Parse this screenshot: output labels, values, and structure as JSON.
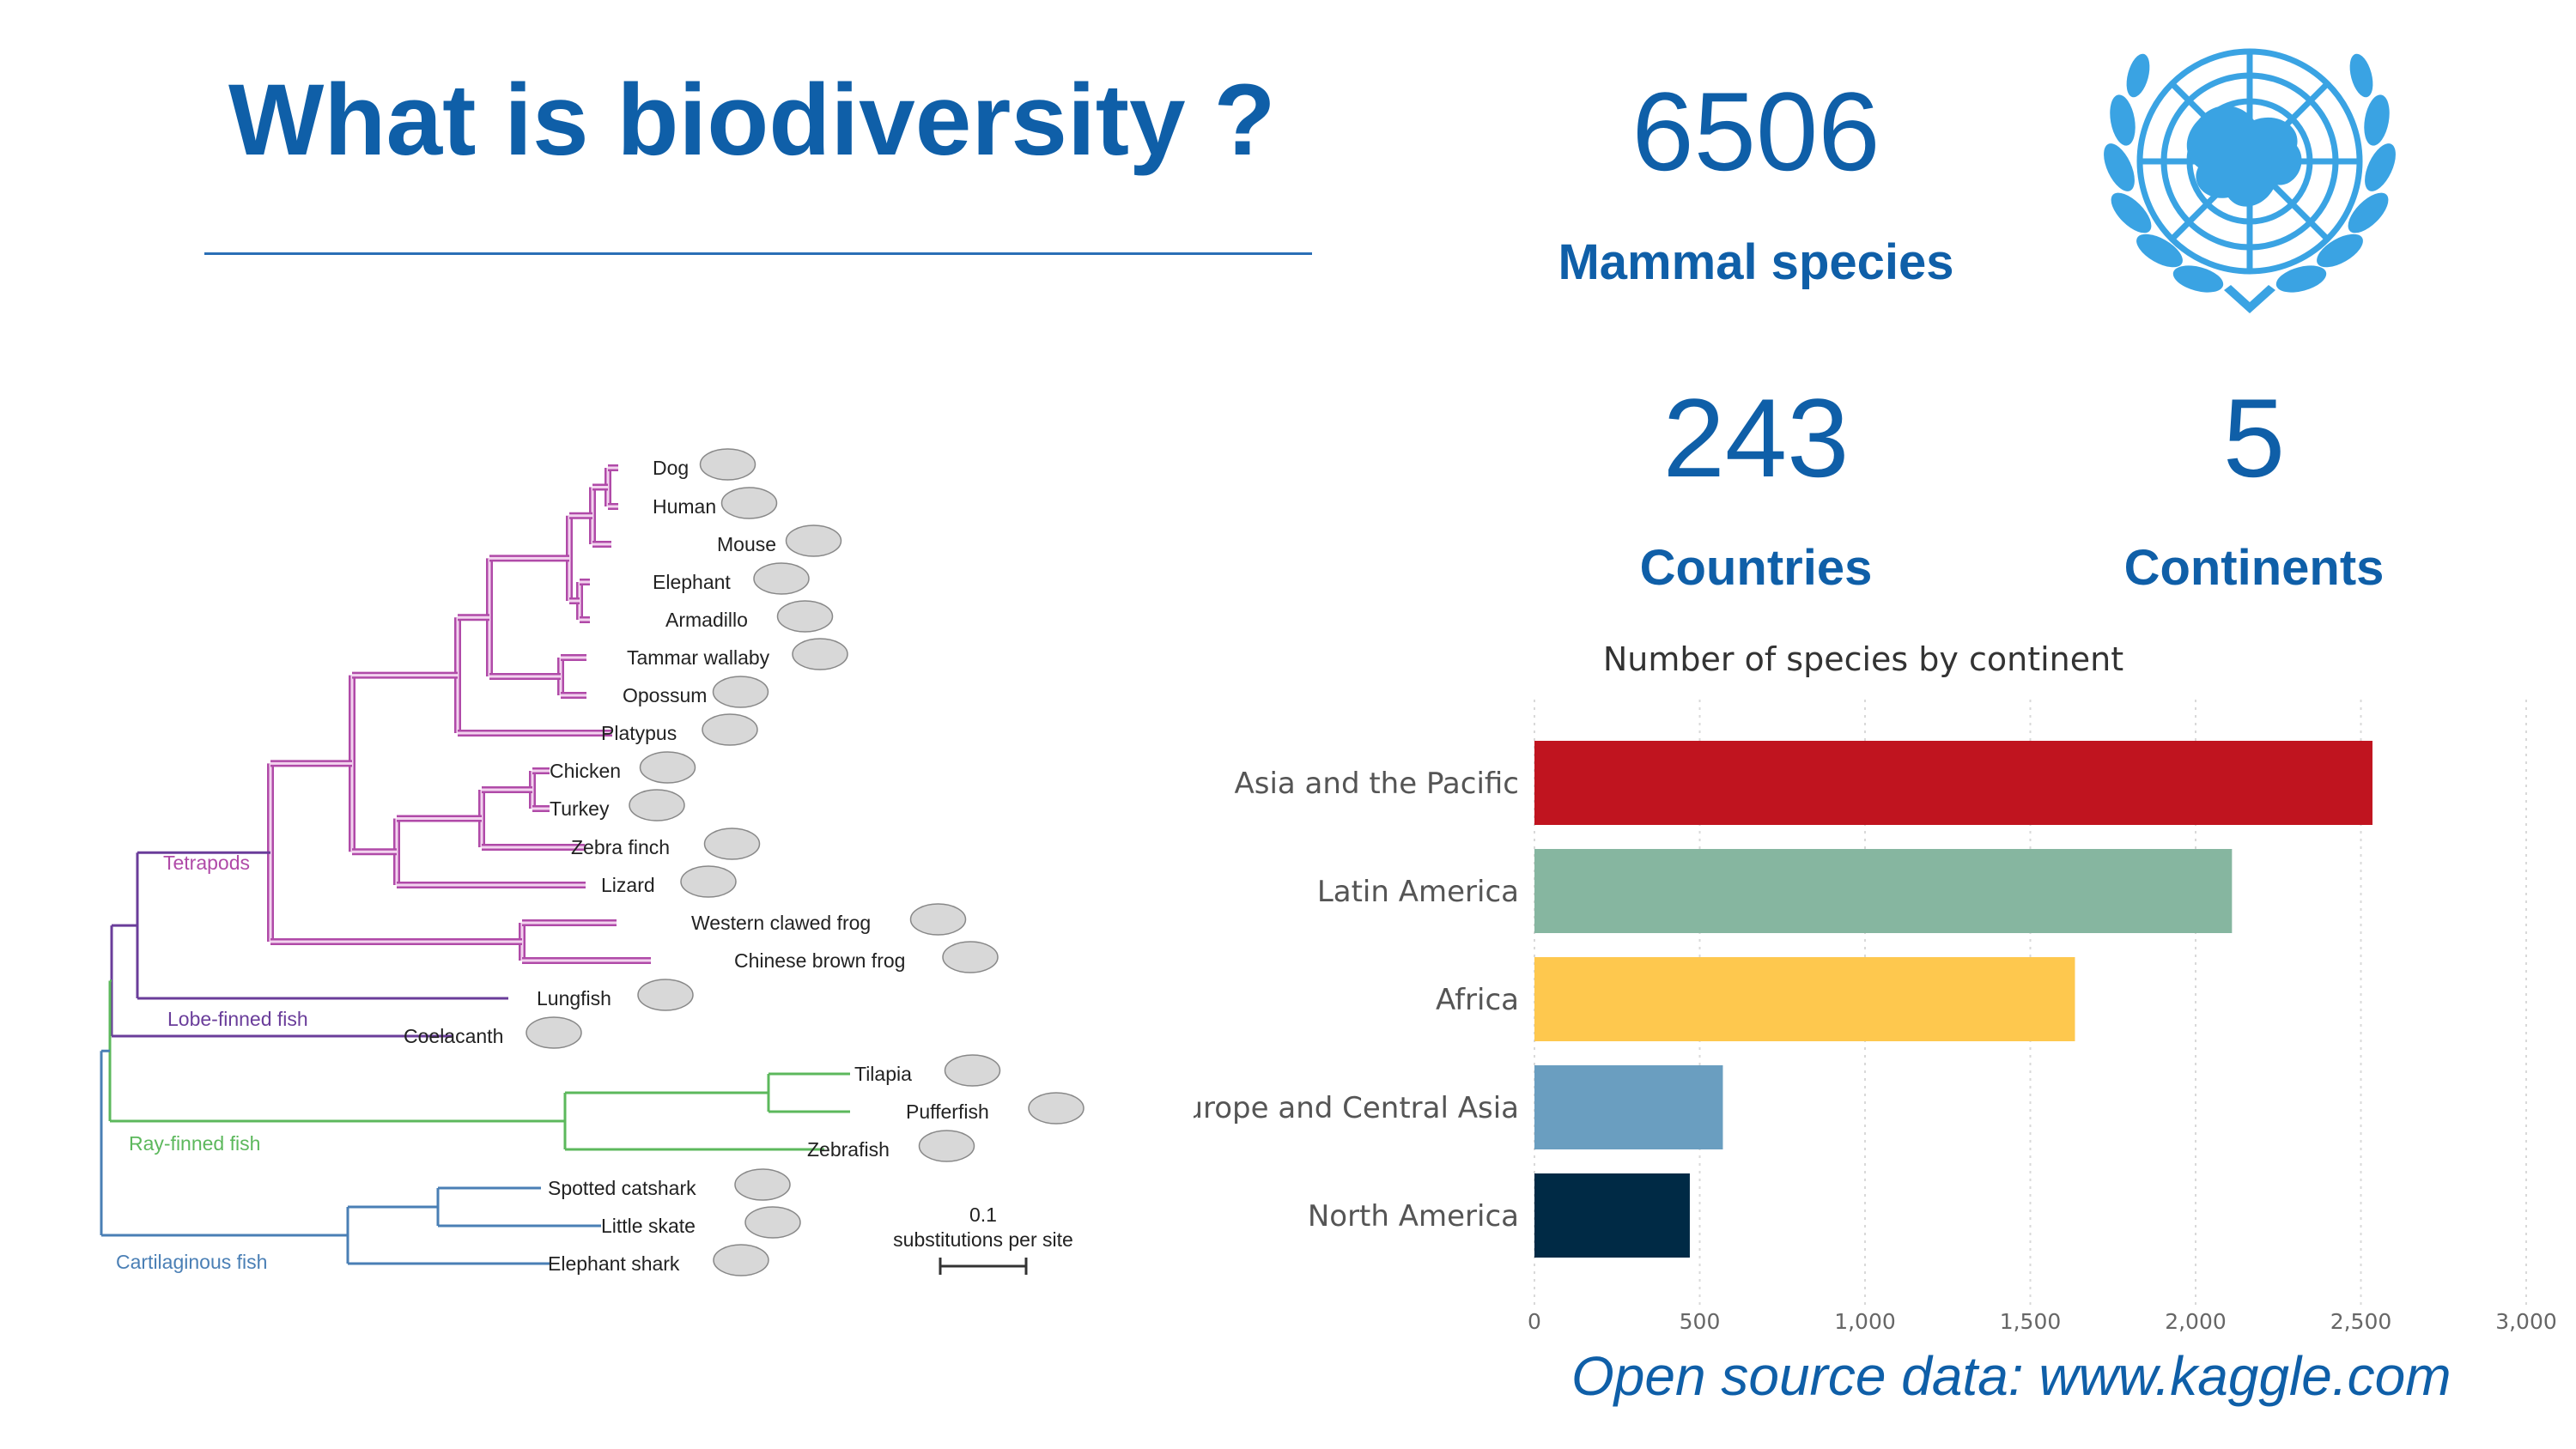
{
  "slide": {
    "title": "What is biodiversity ?",
    "source": "Open source data: www.kaggle.com"
  },
  "stats": {
    "mammal_species": {
      "value": "6506",
      "label": "Mammal species"
    },
    "countries": {
      "value": "243",
      "label": "Countries"
    },
    "continents": {
      "value": "5",
      "label": "Continents"
    }
  },
  "tree": {
    "groups": {
      "tetrapods": "Tetrapods",
      "lobe_finned": "Lobe-finned fish",
      "ray_finned": "Ray-finned fish",
      "cartilaginous": "Cartilaginous fish"
    },
    "taxa": [
      "Dog",
      "Human",
      "Mouse",
      "Elephant",
      "Armadillo",
      "Tammar wallaby",
      "Opossum",
      "Platypus",
      "Chicken",
      "Turkey",
      "Zebra finch",
      "Lizard",
      "Western clawed frog",
      "Chinese brown frog",
      "Lungfish",
      "Coelacanth",
      "Tilapia",
      "Pufferfish",
      "Zebrafish",
      "Spotted catshark",
      "Little skate",
      "Elephant shark"
    ],
    "scale_value": "0.1",
    "scale_label": "substitutions per site",
    "colors": {
      "tetrapods": "#b04aa8",
      "lobe_finned": "#6a3d9a",
      "ray_finned": "#5cb85c",
      "cartilaginous": "#4a7fb5"
    }
  },
  "chart_data": {
    "type": "bar",
    "orientation": "horizontal",
    "title": "Number of species by continent",
    "categories": [
      "Asia and the Pacific",
      "Latin America",
      "Africa",
      "Europe and Central Asia",
      "North America"
    ],
    "values": [
      2535,
      2110,
      1635,
      570,
      470
    ],
    "colors": [
      "#c0141f",
      "#86b6a0",
      "#fec84e",
      "#6a9ec0",
      "#002a45"
    ],
    "xlim": [
      0,
      3000
    ],
    "ticks": [
      0,
      500,
      1000,
      1500,
      2000,
      2500,
      3000
    ],
    "tick_labels": [
      "0",
      "500",
      "1,000",
      "1,500",
      "2,000",
      "2,500",
      "3,000"
    ],
    "grid": true
  }
}
